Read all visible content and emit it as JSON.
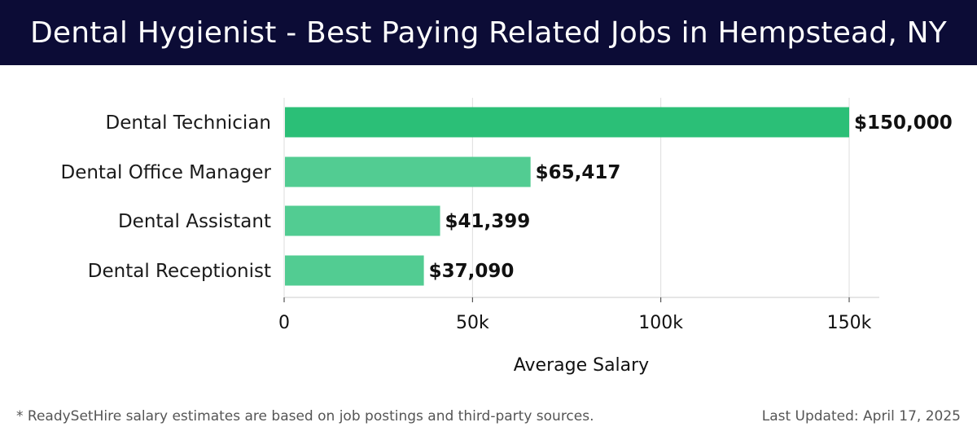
{
  "header": {
    "title": "Dental Hygienist - Best Paying Related Jobs in Hempstead, NY"
  },
  "chart_data": {
    "type": "bar",
    "orientation": "horizontal",
    "categories": [
      "Dental Technician",
      "Dental Office Manager",
      "Dental Assistant",
      "Dental Receptionist"
    ],
    "values": [
      150000,
      65417,
      41399,
      37090
    ],
    "value_labels": [
      "$150,000",
      "$65,417",
      "$41,399",
      "$37,090"
    ],
    "xlabel": "Average Salary",
    "xlim": [
      0,
      157000
    ],
    "xticks": [
      0,
      50000,
      100000,
      150000
    ],
    "xtick_labels": [
      "0",
      "50k",
      "100k",
      "150k"
    ],
    "grid": true,
    "colors": {
      "top_bar": "#2bbf77",
      "bar": "#52cc92",
      "grid": "#dddddd",
      "axis": "#cccccc"
    }
  },
  "footer": {
    "note": "* ReadySetHire salary estimates are based on job postings and third-party sources.",
    "updated": "Last Updated: April 17, 2025"
  }
}
